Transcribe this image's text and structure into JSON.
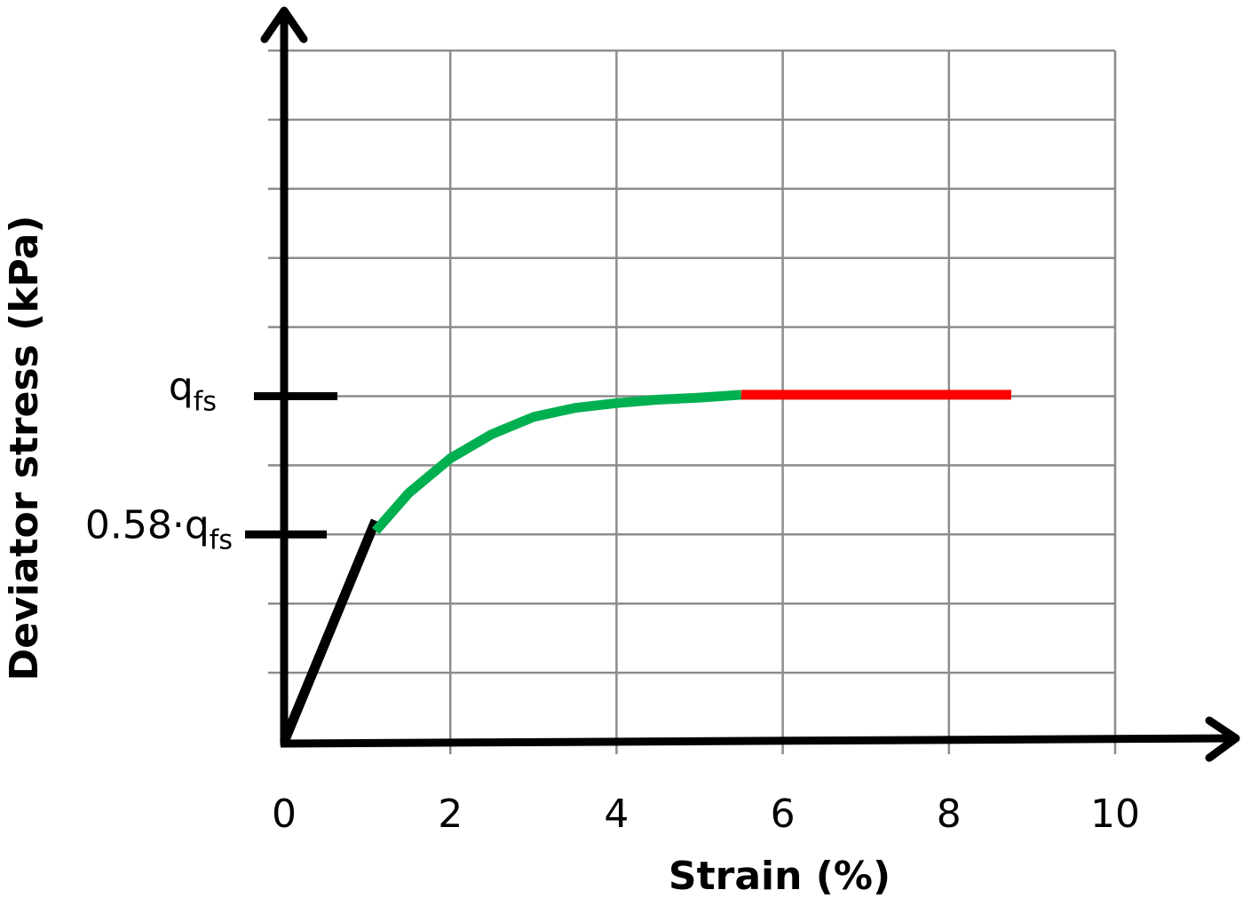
{
  "chart_data": {
    "type": "line",
    "xlabel": "Strain (%)",
    "ylabel": "Deviator stress (kPa)",
    "x_ticks": [
      "0",
      "2",
      "4",
      "6",
      "8",
      "10"
    ],
    "xlim": [
      0,
      10
    ],
    "ylim": [
      0,
      10
    ],
    "grid": true,
    "y_markers": [
      {
        "main": "q",
        "sub": "fs",
        "value": 5.0
      },
      {
        "main": "0.58·q",
        "sub": "fs",
        "value": 3.0
      }
    ],
    "series": [
      {
        "color": "#000000",
        "points": [
          [
            0,
            0
          ],
          [
            1.1,
            3.2
          ]
        ]
      },
      {
        "color": "#00b050",
        "points": [
          [
            1.1,
            3.05
          ],
          [
            1.5,
            3.6
          ],
          [
            2.0,
            4.1
          ],
          [
            2.5,
            4.45
          ],
          [
            3.0,
            4.7
          ],
          [
            3.5,
            4.83
          ],
          [
            4.0,
            4.9
          ],
          [
            4.5,
            4.95
          ],
          [
            5.0,
            4.98
          ],
          [
            5.5,
            5.02
          ]
        ]
      },
      {
        "color": "#ff0000",
        "points": [
          [
            5.5,
            5.02
          ],
          [
            8.75,
            5.02
          ]
        ]
      }
    ]
  }
}
